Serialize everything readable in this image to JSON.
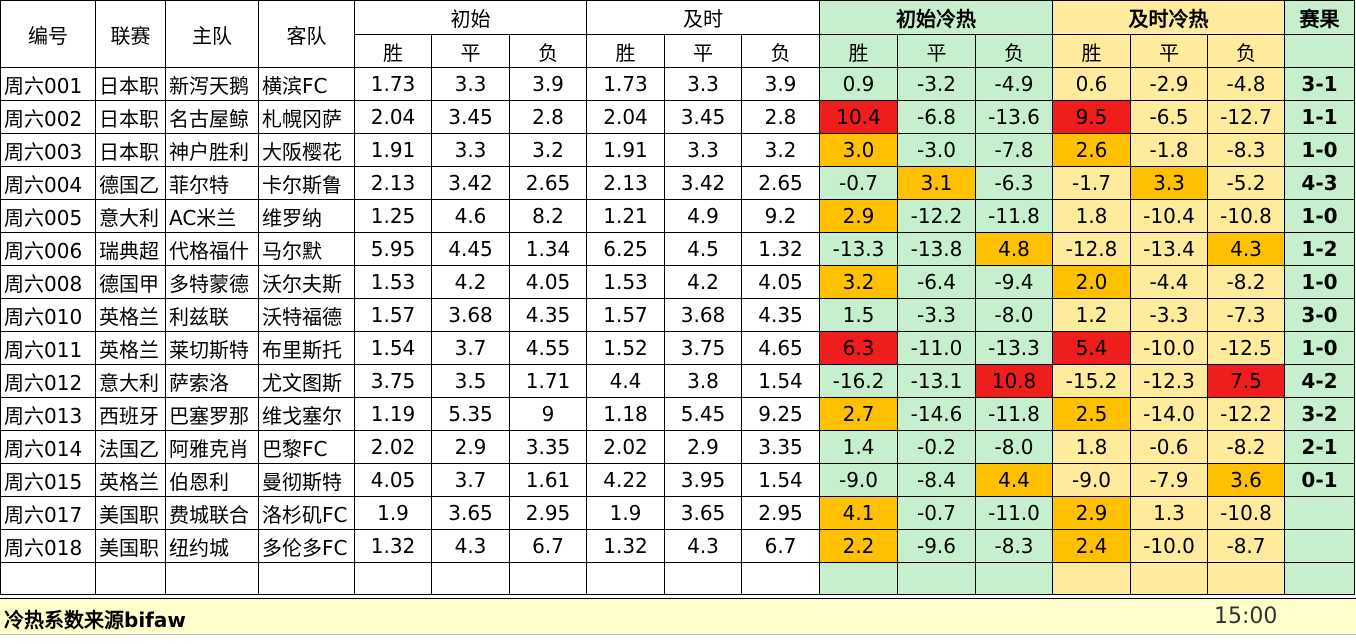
{
  "header": {
    "code": "编号",
    "league": "联赛",
    "home": "主队",
    "away": "客队",
    "initial": "初始",
    "live": "及时",
    "initial_heat": "初始冷热",
    "live_heat": "及时冷热",
    "result": "赛果",
    "win": "胜",
    "draw": "平",
    "lose": "负"
  },
  "colors": {
    "green": "#c6efce",
    "yellow": "#ffeb9c",
    "red": "#f01d1d",
    "orange": "#ffc000"
  },
  "rows": [
    {
      "code": "周六001",
      "league": "日本职",
      "home": "新泻天鹅",
      "away": "横滨FC",
      "i": [
        "1.73",
        "3.3",
        "3.9"
      ],
      "l": [
        "1.73",
        "3.3",
        "3.9"
      ],
      "ih": [
        "0.9",
        "-3.2",
        "-4.9"
      ],
      "lh": [
        "0.6",
        "-2.9",
        "-4.8"
      ],
      "res": "3-1"
    },
    {
      "code": "周六002",
      "league": "日本职",
      "home": "名古屋鲸",
      "away": "札幌冈萨",
      "i": [
        "2.04",
        "3.45",
        "2.8"
      ],
      "l": [
        "2.04",
        "3.45",
        "2.8"
      ],
      "ih": [
        "10.4",
        "-6.8",
        "-13.6"
      ],
      "lh": [
        "9.5",
        "-6.5",
        "-12.7"
      ],
      "res": "1-1"
    },
    {
      "code": "周六003",
      "league": "日本职",
      "home": "神户胜利",
      "away": "大阪樱花",
      "i": [
        "1.91",
        "3.3",
        "3.2"
      ],
      "l": [
        "1.91",
        "3.3",
        "3.2"
      ],
      "ih": [
        "3.0",
        "-3.0",
        "-7.8"
      ],
      "lh": [
        "2.6",
        "-1.8",
        "-8.3"
      ],
      "res": "1-0"
    },
    {
      "code": "周六004",
      "league": "德国乙",
      "home": "菲尔特",
      "away": "卡尔斯鲁",
      "i": [
        "2.13",
        "3.42",
        "2.65"
      ],
      "l": [
        "2.13",
        "3.42",
        "2.65"
      ],
      "ih": [
        "-0.7",
        "3.1",
        "-6.3"
      ],
      "lh": [
        "-1.7",
        "3.3",
        "-5.2"
      ],
      "res": "4-3"
    },
    {
      "code": "周六005",
      "league": "意大利",
      "home": "AC米兰",
      "away": "维罗纳",
      "i": [
        "1.25",
        "4.6",
        "8.2"
      ],
      "l": [
        "1.21",
        "4.9",
        "9.2"
      ],
      "ih": [
        "2.9",
        "-12.2",
        "-11.8"
      ],
      "lh": [
        "1.8",
        "-10.4",
        "-10.8"
      ],
      "res": "1-0"
    },
    {
      "code": "周六006",
      "league": "瑞典超",
      "home": "代格福什",
      "away": "马尔默",
      "i": [
        "5.95",
        "4.45",
        "1.34"
      ],
      "l": [
        "6.25",
        "4.5",
        "1.32"
      ],
      "ih": [
        "-13.3",
        "-13.8",
        "4.8"
      ],
      "lh": [
        "-12.8",
        "-13.4",
        "4.3"
      ],
      "res": "1-2"
    },
    {
      "code": "周六008",
      "league": "德国甲",
      "home": "多特蒙德",
      "away": "沃尔夫斯",
      "i": [
        "1.53",
        "4.2",
        "4.05"
      ],
      "l": [
        "1.53",
        "4.2",
        "4.05"
      ],
      "ih": [
        "3.2",
        "-6.4",
        "-9.4"
      ],
      "lh": [
        "2.0",
        "-4.4",
        "-8.2"
      ],
      "res": "1-0"
    },
    {
      "code": "周六010",
      "league": "英格兰",
      "home": "利兹联",
      "away": "沃特福德",
      "i": [
        "1.57",
        "3.68",
        "4.35"
      ],
      "l": [
        "1.57",
        "3.68",
        "4.35"
      ],
      "ih": [
        "1.5",
        "-3.3",
        "-8.0"
      ],
      "lh": [
        "1.2",
        "-3.3",
        "-7.3"
      ],
      "res": "3-0"
    },
    {
      "code": "周六011",
      "league": "英格兰",
      "home": "莱切斯特",
      "away": "布里斯托",
      "i": [
        "1.54",
        "3.7",
        "4.55"
      ],
      "l": [
        "1.52",
        "3.75",
        "4.65"
      ],
      "ih": [
        "6.3",
        "-11.0",
        "-13.3"
      ],
      "lh": [
        "5.4",
        "-10.0",
        "-12.5"
      ],
      "res": "1-0"
    },
    {
      "code": "周六012",
      "league": "意大利",
      "home": "萨索洛",
      "away": "尤文图斯",
      "i": [
        "3.75",
        "3.5",
        "1.71"
      ],
      "l": [
        "4.4",
        "3.8",
        "1.54"
      ],
      "ih": [
        "-16.2",
        "-13.1",
        "10.8"
      ],
      "lh": [
        "-15.2",
        "-12.3",
        "7.5"
      ],
      "res": "4-2"
    },
    {
      "code": "周六013",
      "league": "西班牙",
      "home": "巴塞罗那",
      "away": "维戈塞尔",
      "i": [
        "1.19",
        "5.35",
        "9"
      ],
      "l": [
        "1.18",
        "5.45",
        "9.25"
      ],
      "ih": [
        "2.7",
        "-14.6",
        "-11.8"
      ],
      "lh": [
        "2.5",
        "-14.0",
        "-12.2"
      ],
      "res": "3-2"
    },
    {
      "code": "周六014",
      "league": "法国乙",
      "home": "阿雅克肖",
      "away": "巴黎FC",
      "i": [
        "2.02",
        "2.9",
        "3.35"
      ],
      "l": [
        "2.02",
        "2.9",
        "3.35"
      ],
      "ih": [
        "1.4",
        "-0.2",
        "-8.0"
      ],
      "lh": [
        "1.8",
        "-0.6",
        "-8.2"
      ],
      "res": "2-1"
    },
    {
      "code": "周六015",
      "league": "英格兰",
      "home": "伯恩利",
      "away": "曼彻斯特",
      "i": [
        "4.05",
        "3.7",
        "1.61"
      ],
      "l": [
        "4.22",
        "3.95",
        "1.54"
      ],
      "ih": [
        "-9.0",
        "-8.4",
        "4.4"
      ],
      "lh": [
        "-9.0",
        "-7.9",
        "3.6"
      ],
      "res": "0-1"
    },
    {
      "code": "周六017",
      "league": "美国职",
      "home": "费城联合",
      "away": "洛杉矶FC",
      "i": [
        "1.9",
        "3.65",
        "2.95"
      ],
      "l": [
        "1.9",
        "3.65",
        "2.95"
      ],
      "ih": [
        "4.1",
        "-0.7",
        "-11.0"
      ],
      "lh": [
        "2.9",
        "1.3",
        "-10.8"
      ],
      "res": ""
    },
    {
      "code": "周六018",
      "league": "美国职",
      "home": "纽约城",
      "away": "多伦多FC",
      "i": [
        "1.32",
        "4.3",
        "6.7"
      ],
      "l": [
        "1.32",
        "4.3",
        "6.7"
      ],
      "ih": [
        "2.2",
        "-9.6",
        "-8.3"
      ],
      "lh": [
        "2.4",
        "-10.0",
        "-8.7"
      ],
      "res": ""
    }
  ],
  "footer": {
    "note": "冷热系数来源bifaw",
    "time": "15:00"
  }
}
